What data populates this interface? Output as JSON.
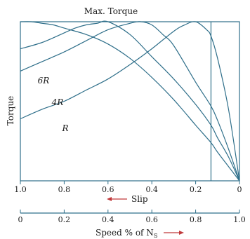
{
  "chart_data": {
    "type": "line",
    "title": "Max. Torque",
    "ylabel": "Torque",
    "slip_axis": {
      "label": "Slip",
      "range": [
        1.0,
        0.0
      ],
      "ticks": [
        1.0,
        0.8,
        0.6,
        0.4,
        0.2,
        0
      ],
      "tick_labels": [
        "1.0",
        "0.8",
        "0.6",
        "0.4",
        "0.2",
        "0"
      ]
    },
    "speed_axis": {
      "label_prefix": "Speed % of N",
      "label_subscript": "S",
      "range": [
        0,
        1.0
      ],
      "ticks": [
        0,
        0.2,
        0.4,
        0.6,
        0.8,
        1.0
      ],
      "tick_labels": [
        "0",
        "0.2",
        "0.4",
        "0.6",
        "0.8",
        "1.0"
      ]
    },
    "max_torque": 1.0,
    "series": [
      {
        "name": "R",
        "x": [
          1.0,
          0.9,
          0.8,
          0.7,
          0.6,
          0.5,
          0.4,
          0.3,
          0.25,
          0.2,
          0.15,
          0.13,
          0.1,
          0.05,
          0.0
        ],
        "y": [
          0.39,
          0.45,
          0.5,
          0.57,
          0.64,
          0.73,
          0.83,
          0.94,
          0.98,
          1.0,
          0.95,
          0.91,
          0.77,
          0.45,
          0.0
        ]
      },
      {
        "name": "4R",
        "x": [
          1.0,
          0.9,
          0.8,
          0.7,
          0.6,
          0.5,
          0.45,
          0.4,
          0.35,
          0.3,
          0.2,
          0.13,
          0.1,
          0.05,
          0.0
        ],
        "y": [
          0.69,
          0.75,
          0.81,
          0.88,
          0.95,
          0.99,
          1.0,
          0.98,
          0.92,
          0.85,
          0.62,
          0.47,
          0.38,
          0.2,
          0.0
        ]
      },
      {
        "name": "6R",
        "x": [
          1.0,
          0.9,
          0.8,
          0.75,
          0.7,
          0.65,
          0.6,
          0.5,
          0.4,
          0.3,
          0.2,
          0.13,
          0.1,
          0.05,
          0.0
        ],
        "y": [
          0.83,
          0.87,
          0.93,
          0.96,
          0.98,
          0.99,
          1.0,
          0.92,
          0.78,
          0.64,
          0.48,
          0.35,
          0.27,
          0.15,
          0.0
        ]
      },
      {
        "name": "",
        "x": [
          1.0,
          0.95,
          0.9,
          0.85,
          0.8,
          0.7,
          0.6,
          0.5,
          0.4,
          0.3,
          0.2,
          0.13,
          0.1,
          0.05,
          0.0
        ],
        "y": [
          1.0,
          1.0,
          0.99,
          0.98,
          0.96,
          0.92,
          0.86,
          0.77,
          0.65,
          0.51,
          0.35,
          0.24,
          0.18,
          0.09,
          0.0
        ]
      }
    ],
    "vertical_marker_slip": 0.13,
    "annotations": [
      "Max. Torque",
      "6R",
      "4R",
      "R"
    ],
    "arrow_color": "#c0393b",
    "line_color": "#2f6f8a",
    "grid": false
  }
}
